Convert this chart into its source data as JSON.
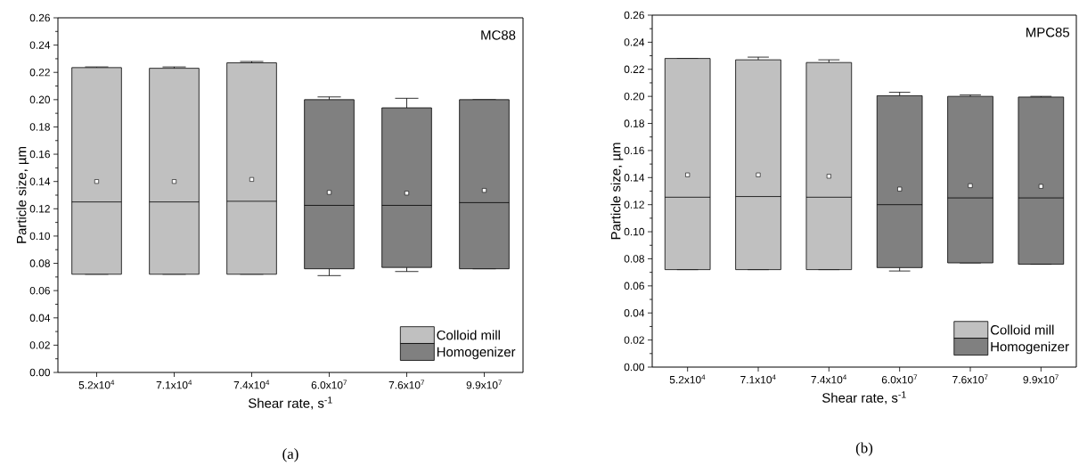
{
  "chart_data": [
    {
      "type": "box",
      "title": "MC88",
      "xlabel": "Shear rate, s$^{-1}$",
      "ylabel": "Particle size, µm",
      "annotations": [
        "(a)"
      ],
      "categories": [
        "5.2x10$^{4}$",
        "7.1x10$^{4}$",
        "7.4x10$^{4}$",
        "6.0x10$^{7}$",
        "7.6x10$^{7}$",
        "9.9x10$^{7}$"
      ],
      "series": [
        {
          "name": "Colloid mill",
          "color": "#c0c0c0",
          "boxes": [
            {
              "low": 0.072,
              "q1": 0.072,
              "median": 0.125,
              "q3": 0.2235,
              "high": 0.224,
              "mean": 0.14
            },
            {
              "low": 0.072,
              "q1": 0.072,
              "median": 0.125,
              "q3": 0.223,
              "high": 0.224,
              "mean": 0.14
            },
            {
              "low": 0.072,
              "q1": 0.072,
              "median": 0.1255,
              "q3": 0.227,
              "high": 0.228,
              "mean": 0.1415
            },
            null,
            null,
            null
          ]
        },
        {
          "name": "Homogenizer",
          "color": "#808080",
          "boxes": [
            null,
            null,
            null,
            {
              "low": 0.071,
              "q1": 0.076,
              "median": 0.1225,
              "q3": 0.2,
              "high": 0.202,
              "mean": 0.132
            },
            {
              "low": 0.074,
              "q1": 0.077,
              "median": 0.1225,
              "q3": 0.194,
              "high": 0.201,
              "mean": 0.1315
            },
            {
              "low": 0.076,
              "q1": 0.076,
              "median": 0.1245,
              "q3": 0.2,
              "high": 0.2,
              "mean": 0.1335
            }
          ]
        }
      ],
      "ylim": [
        0,
        0.26
      ],
      "yticks": [
        {
          "value": 0,
          "label": "0.00"
        },
        {
          "value": 0.02,
          "label": "0.02"
        },
        {
          "value": 0.04,
          "label": "0.04"
        },
        {
          "value": 0.06,
          "label": "0.06"
        },
        {
          "value": 0.08,
          "label": "0.08"
        },
        {
          "value": 0.1,
          "label": "0.10"
        },
        {
          "value": 0.12,
          "label": "0.12"
        },
        {
          "value": 0.14,
          "label": "0.14"
        },
        {
          "value": 0.16,
          "label": "0.16"
        },
        {
          "value": 0.18,
          "label": "0.18"
        },
        {
          "value": 0.2,
          "label": "0.20"
        },
        {
          "value": 0.22,
          "label": "0.22"
        },
        {
          "value": 0.24,
          "label": "0.24"
        },
        {
          "value": 0.26,
          "label": "0.26"
        }
      ],
      "legend": "bottom right",
      "marker": "square"
    },
    {
      "type": "box",
      "title": "MPC85",
      "xlabel": "Shear rate, s$^{-1}$",
      "ylabel": "Particle size, µm",
      "annotations": [
        "(b)"
      ],
      "categories": [
        "5.2x10$^{4}$",
        "7.1x10$^{4}$",
        "7.4x10$^{4}$",
        "6.0x10$^{7}$",
        "7.6x10$^{7}$",
        "9.9x10$^{7}$"
      ],
      "series": [
        {
          "name": "Colloid mill",
          "color": "#c0c0c0",
          "boxes": [
            {
              "low": 0.072,
              "q1": 0.072,
              "median": 0.1255,
              "q3": 0.228,
              "high": 0.228,
              "mean": 0.142
            },
            {
              "low": 0.072,
              "q1": 0.072,
              "median": 0.126,
              "q3": 0.227,
              "high": 0.229,
              "mean": 0.142
            },
            {
              "low": 0.072,
              "q1": 0.072,
              "median": 0.1255,
              "q3": 0.225,
              "high": 0.227,
              "mean": 0.141
            },
            null,
            null,
            null
          ]
        },
        {
          "name": "Homogenizer",
          "color": "#808080",
          "boxes": [
            null,
            null,
            null,
            {
              "low": 0.071,
              "q1": 0.0735,
              "median": 0.12,
              "q3": 0.2005,
              "high": 0.203,
              "mean": 0.1315
            },
            {
              "low": 0.077,
              "q1": 0.077,
              "median": 0.125,
              "q3": 0.2,
              "high": 0.201,
              "mean": 0.134
            },
            {
              "low": 0.076,
              "q1": 0.076,
              "median": 0.125,
              "q3": 0.1995,
              "high": 0.2,
              "mean": 0.1335
            }
          ]
        }
      ],
      "ylim": [
        0,
        0.26
      ],
      "yticks": [
        {
          "value": 0,
          "label": "0.00"
        },
        {
          "value": 0.02,
          "label": "0.02"
        },
        {
          "value": 0.04,
          "label": "0.04"
        },
        {
          "value": 0.06,
          "label": "0.06"
        },
        {
          "value": 0.08,
          "label": "0.08"
        },
        {
          "value": 0.1,
          "label": "0.10"
        },
        {
          "value": 0.12,
          "label": "0.12"
        },
        {
          "value": 0.14,
          "label": "0.14"
        },
        {
          "value": 0.16,
          "label": "0.16"
        },
        {
          "value": 0.18,
          "label": "0.18"
        },
        {
          "value": 0.2,
          "label": "0.20"
        },
        {
          "value": 0.22,
          "label": "0.22"
        },
        {
          "value": 0.24,
          "label": "0.24"
        },
        {
          "value": 0.26,
          "label": "0.26"
        }
      ],
      "legend": "bottom right",
      "marker": "square"
    }
  ]
}
